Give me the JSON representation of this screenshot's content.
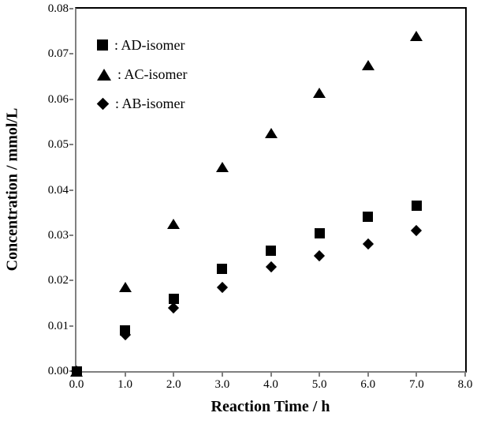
{
  "chart_data": {
    "type": "scatter",
    "x": [
      0.0,
      1.0,
      2.0,
      3.0,
      4.0,
      5.0,
      6.0,
      7.0
    ],
    "series": [
      {
        "name": "AD-isomer",
        "marker": "square",
        "values": [
          0.0,
          0.009,
          0.016,
          0.0225,
          0.0265,
          0.0305,
          0.034,
          0.0365
        ]
      },
      {
        "name": "AC-isomer",
        "marker": "triangle",
        "values": [
          0.0,
          0.0185,
          0.0325,
          0.045,
          0.0525,
          0.0615,
          0.0675,
          0.074
        ]
      },
      {
        "name": "AB-isomer",
        "marker": "diamond",
        "values": [
          0.0,
          0.008,
          0.014,
          0.0185,
          0.023,
          0.0255,
          0.028,
          0.031
        ]
      }
    ],
    "xlabel": "Reaction Time / h",
    "ylabel": "Concentration / mmol/L",
    "xlim": [
      0.0,
      8.0
    ],
    "ylim": [
      0.0,
      0.08
    ],
    "x_ticks": [
      "0.0",
      "1.0",
      "2.0",
      "3.0",
      "4.0",
      "5.0",
      "6.0",
      "7.0",
      "8.0"
    ],
    "y_ticks": [
      "0.00",
      "0.01",
      "0.02",
      "0.03",
      "0.04",
      "0.05",
      "0.06",
      "0.07",
      "0.08"
    ],
    "grid": false,
    "legend_position": "top-left-inside"
  },
  "legend": {
    "items": [
      {
        "marker": "square",
        "label": ": AD-isomer"
      },
      {
        "marker": "triangle",
        "label": ": AC-isomer"
      },
      {
        "marker": "diamond",
        "label": ": AB-isomer"
      }
    ]
  },
  "colors": {
    "marker": "#000000",
    "axis_line": "#808080",
    "frame": "#000000",
    "background": "#ffffff",
    "text": "#000000"
  }
}
